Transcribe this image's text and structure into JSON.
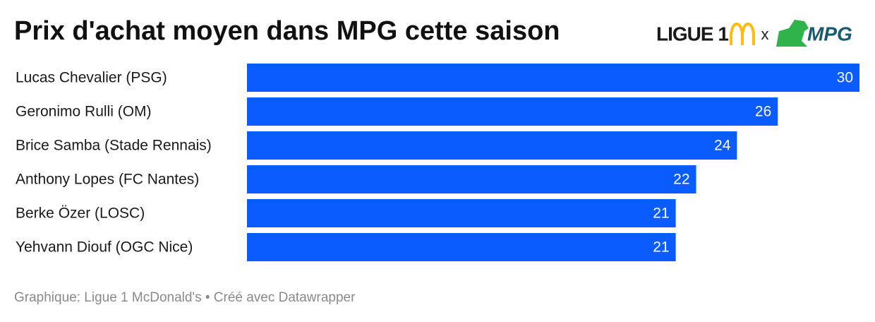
{
  "chart_data": {
    "type": "bar",
    "orientation": "horizontal",
    "title": "Prix d'achat moyen dans MPG cette saison",
    "logos": {
      "left": "LIGUE 1",
      "separator": "x",
      "right": "MPG"
    },
    "categories": [
      "Lucas Chevalier (PSG)",
      "Geronimo Rulli (OM)",
      "Brice Samba (Stade Rennais)",
      "Anthony Lopes (FC Nantes)",
      "Berke Özer (LOSC)",
      "Yehvann Diouf (OGC Nice)"
    ],
    "values": [
      30,
      26,
      24,
      22,
      21,
      21
    ],
    "color": "#0b5cff",
    "xlim": [
      0,
      30
    ],
    "footer": "Graphique: Ligue 1 McDonald's • Créé avec Datawrapper"
  }
}
